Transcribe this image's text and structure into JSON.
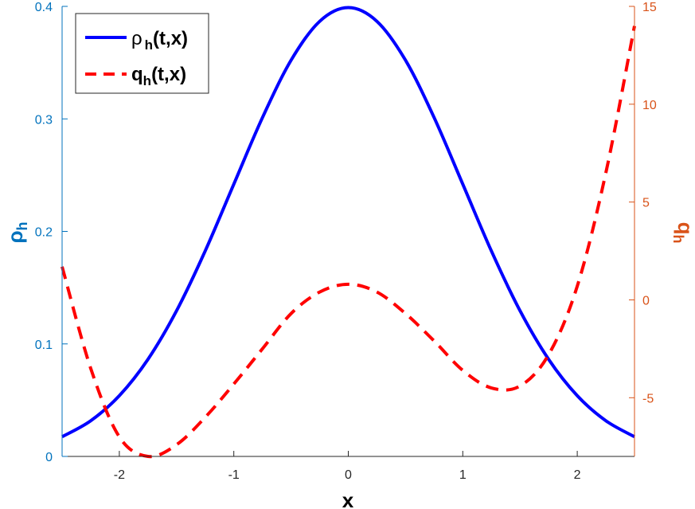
{
  "chart_data": {
    "type": "line",
    "xlabel": "x",
    "ylabel_left": "ρ",
    "ylabel_left_sub": "h",
    "ylabel_right": "q",
    "ylabel_right_sub": "h",
    "xlim": [
      -2.5,
      2.5
    ],
    "ylim_left": [
      0,
      0.4
    ],
    "ylim_right": [
      -8,
      15
    ],
    "x_ticks": [
      "-2",
      "-1",
      "0",
      "1",
      "2"
    ],
    "x_tick_values": [
      -2,
      -1,
      0,
      1,
      2
    ],
    "left_ticks": [
      "0",
      "0.1",
      "0.2",
      "0.3",
      "0.4"
    ],
    "left_tick_values": [
      0,
      0.1,
      0.2,
      0.3,
      0.4
    ],
    "right_ticks": [
      "-5",
      "0",
      "5",
      "10",
      "15"
    ],
    "right_tick_values": [
      -5,
      0,
      5,
      10,
      15
    ],
    "grid": false,
    "legend_position": "top-left",
    "colors": {
      "left_axis": "#0072BD",
      "right_axis": "#D95319",
      "rho_line": "#0000FF",
      "q_line": "#FF0000"
    },
    "series": [
      {
        "name": "ρ",
        "name_sub": "h",
        "name_suffix": "(t,x)",
        "axis": "left",
        "style": "solid",
        "x": [
          -2.5,
          -2.25,
          -2.0,
          -1.75,
          -1.5,
          -1.25,
          -1.0,
          -0.75,
          -0.5,
          -0.25,
          0.0,
          0.25,
          0.5,
          0.75,
          1.0,
          1.25,
          1.5,
          1.75,
          2.0,
          2.25,
          2.5
        ],
        "values": [
          0.0175,
          0.0317,
          0.054,
          0.0863,
          0.1295,
          0.1826,
          0.242,
          0.3011,
          0.3521,
          0.3867,
          0.3989,
          0.3867,
          0.3521,
          0.3011,
          0.242,
          0.1826,
          0.1295,
          0.0863,
          0.054,
          0.0317,
          0.0175
        ]
      },
      {
        "name": "q",
        "name_sub": "h",
        "name_suffix": "(t,x)",
        "axis": "right",
        "style": "dashed",
        "x": [
          -2.5,
          -2.25,
          -2.0,
          -1.75,
          -1.5,
          -1.25,
          -1.0,
          -0.75,
          -0.5,
          -0.25,
          0.0,
          0.25,
          0.5,
          0.75,
          1.0,
          1.25,
          1.5,
          1.75,
          2.0,
          2.25,
          2.5
        ],
        "values": [
          1.7,
          -3.5,
          -7.0,
          -8.0,
          -7.4,
          -6.0,
          -4.3,
          -2.5,
          -0.7,
          0.4,
          0.8,
          0.4,
          -0.7,
          -2.1,
          -3.6,
          -4.5,
          -4.4,
          -2.8,
          0.7,
          6.5,
          14.0
        ]
      }
    ]
  }
}
